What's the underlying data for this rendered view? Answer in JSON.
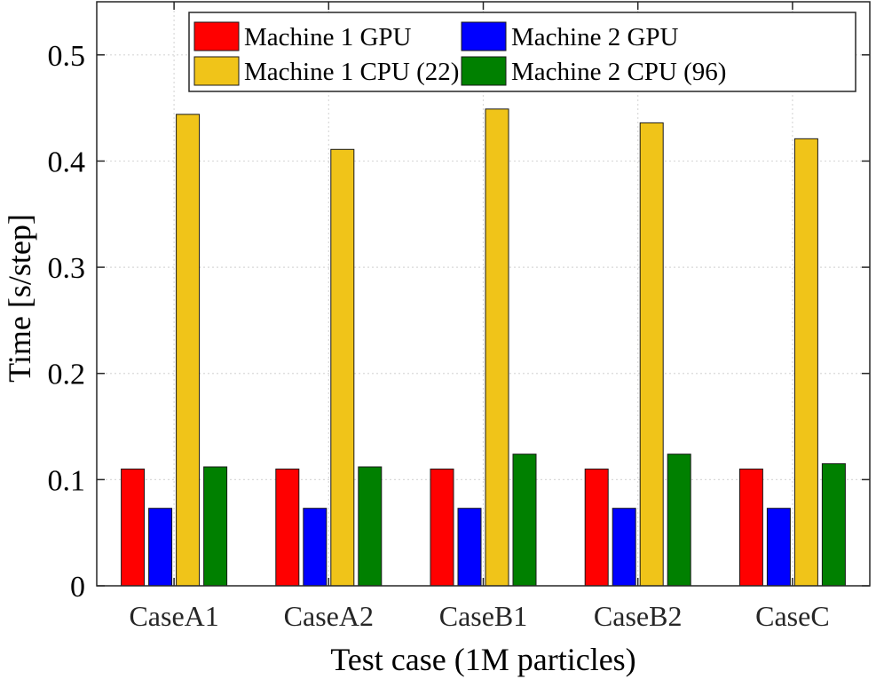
{
  "chart_data": {
    "type": "bar",
    "title": "",
    "xlabel": "Test case (1M particles)",
    "ylabel": "Time [s/step]",
    "categories": [
      "CaseA1",
      "CaseA2",
      "CaseB1",
      "CaseB2",
      "CaseC"
    ],
    "ylim": [
      0,
      0.55
    ],
    "yticks": [
      0,
      0.1,
      0.2,
      0.3,
      0.4,
      0.5
    ],
    "ytick_labels": [
      "0",
      "0.1",
      "0.2",
      "0.3",
      "0.4",
      "0.5"
    ],
    "grid": true,
    "legend": {
      "placement": "top",
      "columns": 2
    },
    "series": [
      {
        "name": "Machine 1 GPU",
        "color": "#ff0000",
        "values": [
          0.11,
          0.11,
          0.11,
          0.11,
          0.11
        ]
      },
      {
        "name": "Machine 2 GPU",
        "color": "#0000ff",
        "values": [
          0.073,
          0.073,
          0.073,
          0.073,
          0.073
        ]
      },
      {
        "name": "Machine 1 CPU (22)",
        "color": "#f0c419",
        "values": [
          0.444,
          0.411,
          0.449,
          0.436,
          0.421
        ]
      },
      {
        "name": "Machine 2 CPU (96)",
        "color": "#008000",
        "values": [
          0.112,
          0.112,
          0.124,
          0.124,
          0.115
        ]
      }
    ],
    "legend_order": [
      0,
      2,
      1,
      3
    ]
  }
}
